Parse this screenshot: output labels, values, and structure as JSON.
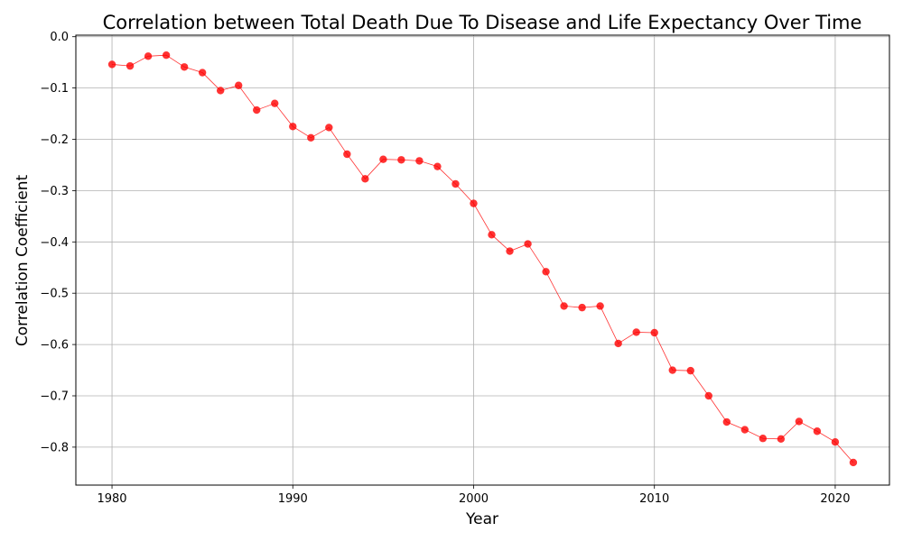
{
  "chart_data": {
    "type": "line",
    "title": "Correlation between Total Death Due To Disease and Life Expectancy Over Time",
    "xlabel": "Year",
    "ylabel": "Correlation Coefficient",
    "xlim": [
      1978,
      2023
    ],
    "ylim": [
      -0.874,
      0.003
    ],
    "x_ticks": [
      1980,
      1990,
      2000,
      2010,
      2020
    ],
    "x_tick_labels": [
      "1980",
      "1990",
      "2000",
      "2010",
      "2020"
    ],
    "y_ticks": [
      0.0,
      -0.1,
      -0.2,
      -0.3,
      -0.4,
      -0.5,
      -0.6,
      -0.7,
      -0.8
    ],
    "y_tick_labels": [
      "0.0",
      "−0.1",
      "−0.2",
      "−0.3",
      "−0.4",
      "−0.5",
      "−0.6",
      "−0.7",
      "−0.8"
    ],
    "grid": true,
    "colors": {
      "line": "#ff0000",
      "marker": "#ff0000",
      "grid": "#b0b0b0",
      "axes": "#000000"
    },
    "series": [
      {
        "x": [
          1980,
          1981,
          1982,
          1983,
          1984,
          1985,
          1986,
          1987,
          1988,
          1989,
          1990,
          1991,
          1992,
          1993,
          1994,
          1995,
          1996,
          1997,
          1998,
          1999,
          2000,
          2001,
          2002,
          2003,
          2004,
          2005,
          2006,
          2007,
          2008,
          2009,
          2010,
          2011,
          2012,
          2013,
          2014,
          2015,
          2016,
          2017,
          2018,
          2019,
          2020,
          2021
        ],
        "values": [
          -0.054,
          -0.057,
          -0.038,
          -0.036,
          -0.059,
          -0.07,
          -0.105,
          -0.095,
          -0.143,
          -0.13,
          -0.175,
          -0.197,
          -0.177,
          -0.229,
          -0.277,
          -0.239,
          -0.24,
          -0.242,
          -0.253,
          -0.287,
          -0.325,
          -0.386,
          -0.418,
          -0.404,
          -0.458,
          -0.525,
          -0.528,
          -0.525,
          -0.598,
          -0.576,
          -0.577,
          -0.65,
          -0.651,
          -0.7,
          -0.751,
          -0.766,
          -0.783,
          -0.784,
          -0.75,
          -0.769,
          -0.79,
          -0.83
        ]
      }
    ]
  }
}
